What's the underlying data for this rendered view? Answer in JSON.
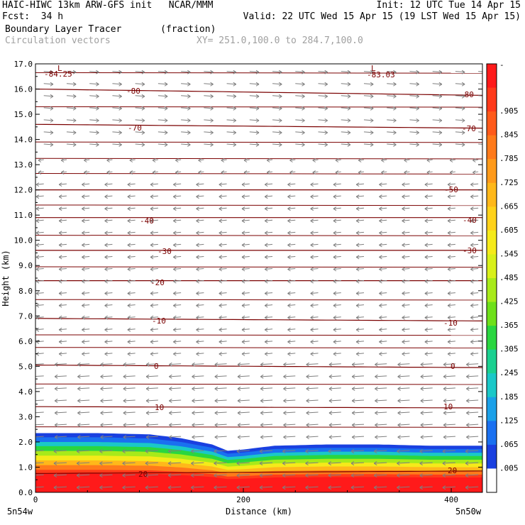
{
  "header": {
    "model_line": "HAIC-HIWC 13km ARW-GFS init   NCAR/MMM",
    "init_line": "Init: 12 UTC Tue 14 Apr 15",
    "fcst_line": "Fcst:  34 h",
    "valid_line": "Valid: 22 UTC Wed 15 Apr 15 (19 LST Wed 15 Apr 15)",
    "field_line": "Boundary Layer Tracer       (fraction)",
    "vector_line": "Circulation vectors",
    "xy_line": "XY= 251.0,100.0 to 284.7,100.0"
  },
  "chart_data": {
    "type": "heatmap",
    "title": "Boundary Layer Tracer",
    "units": "(fraction)",
    "xlabel": "Distance (km)",
    "ylabel": "Height (km)",
    "xlim": [
      0,
      430
    ],
    "ylim": [
      0,
      17
    ],
    "x_ticks": [
      "0",
      "200",
      "400"
    ],
    "x_tick_values": [
      0,
      200,
      400
    ],
    "x_end_labels": {
      "left": "5n54w",
      "right": "5n50w"
    },
    "y_ticks": [
      "0.0",
      "1.0",
      "2.0",
      "3.0",
      "4.0",
      "5.0",
      "6.0",
      "7.0",
      "8.0",
      "9.0",
      "10.0",
      "11.0",
      "12.0",
      "13.0",
      "14.0",
      "15.0",
      "16.0",
      "17.0"
    ],
    "y_tick_values": [
      0,
      1,
      2,
      3,
      4,
      5,
      6,
      7,
      8,
      9,
      10,
      11,
      12,
      13,
      14,
      15,
      16,
      17
    ],
    "colorbar": {
      "labels": [
        "-",
        ".905",
        ".845",
        ".785",
        ".725",
        ".665",
        ".605",
        ".545",
        ".485",
        ".425",
        ".365",
        ".305",
        ".245",
        ".185",
        ".125",
        ".065",
        ".005"
      ],
      "colors": [
        "#ff1a1a",
        "#ff3a1a",
        "#ff5a1a",
        "#ff7a1a",
        "#ff9a1a",
        "#ffb81a",
        "#ffd21a",
        "#f5ea1a",
        "#d8f01a",
        "#a8ea1a",
        "#6ee01a",
        "#2ad640",
        "#1ad090",
        "#1ac8c8",
        "#1aa0e8",
        "#1a70f0",
        "#1a40e0",
        "#ffffff"
      ]
    },
    "contour_labels": [
      "-84.25",
      "-83.03",
      "-80",
      "-70",
      "-50",
      "-40",
      "-30",
      "-20",
      "-10",
      "0",
      "10",
      "20"
    ],
    "low_markers": [
      "L",
      "L"
    ],
    "contour_temperatures": [
      {
        "label": "-80",
        "height_left": 16.0,
        "height_right": 15.75
      },
      {
        "label": "-70",
        "height_left": 14.6,
        "height_right": 14.45
      },
      {
        "label": "-50",
        "height_left": 12.0,
        "height_right": 12.0
      },
      {
        "label": "-40",
        "height_left": 10.9,
        "height_right": 10.9
      },
      {
        "label": "-30",
        "height_left": 9.6,
        "height_right": 9.6
      },
      {
        "label": "-20",
        "height_left": 8.4,
        "height_right": 8.4
      },
      {
        "label": "-10",
        "height_left": 6.9,
        "height_right": 6.8
      },
      {
        "label": "0",
        "height_left": 5.05,
        "height_right": 4.95
      },
      {
        "label": "10",
        "height_left": 3.4,
        "height_right": 3.35
      },
      {
        "label": "20",
        "height_left": 0.75,
        "height_right": 0.85
      }
    ],
    "tracer_top_km": [
      [
        0,
        2.35
      ],
      [
        60,
        2.35
      ],
      [
        110,
        2.3
      ],
      [
        140,
        2.15
      ],
      [
        170,
        1.9
      ],
      [
        185,
        1.65
      ],
      [
        200,
        1.7
      ],
      [
        230,
        1.85
      ],
      [
        280,
        1.9
      ],
      [
        330,
        1.9
      ],
      [
        380,
        1.85
      ],
      [
        430,
        1.85
      ]
    ],
    "tracer_layers_km": [
      {
        "value": 0.065,
        "top": 2.2
      },
      {
        "value": 0.185,
        "top": 1.9
      },
      {
        "value": 0.365,
        "top": 1.55
      },
      {
        "value": 0.545,
        "top": 1.25
      },
      {
        "value": 0.725,
        "top": 1.0
      },
      {
        "value": 0.905,
        "top": 0.75
      }
    ],
    "vectors": [
      {
        "z_min": 0.0,
        "z_max": 2.0,
        "dir": "left",
        "strength": 1.0
      },
      {
        "z_min": 2.0,
        "z_max": 5.3,
        "dir": "left",
        "strength": 0.9
      },
      {
        "z_min": 5.3,
        "z_max": 12.5,
        "dir": "left",
        "strength": 0.4
      },
      {
        "z_min": 12.5,
        "z_max": 13.6,
        "dir": "left",
        "strength": 0.15
      },
      {
        "z_min": 13.6,
        "z_max": 17.0,
        "dir": "right",
        "strength": 0.6
      }
    ]
  }
}
